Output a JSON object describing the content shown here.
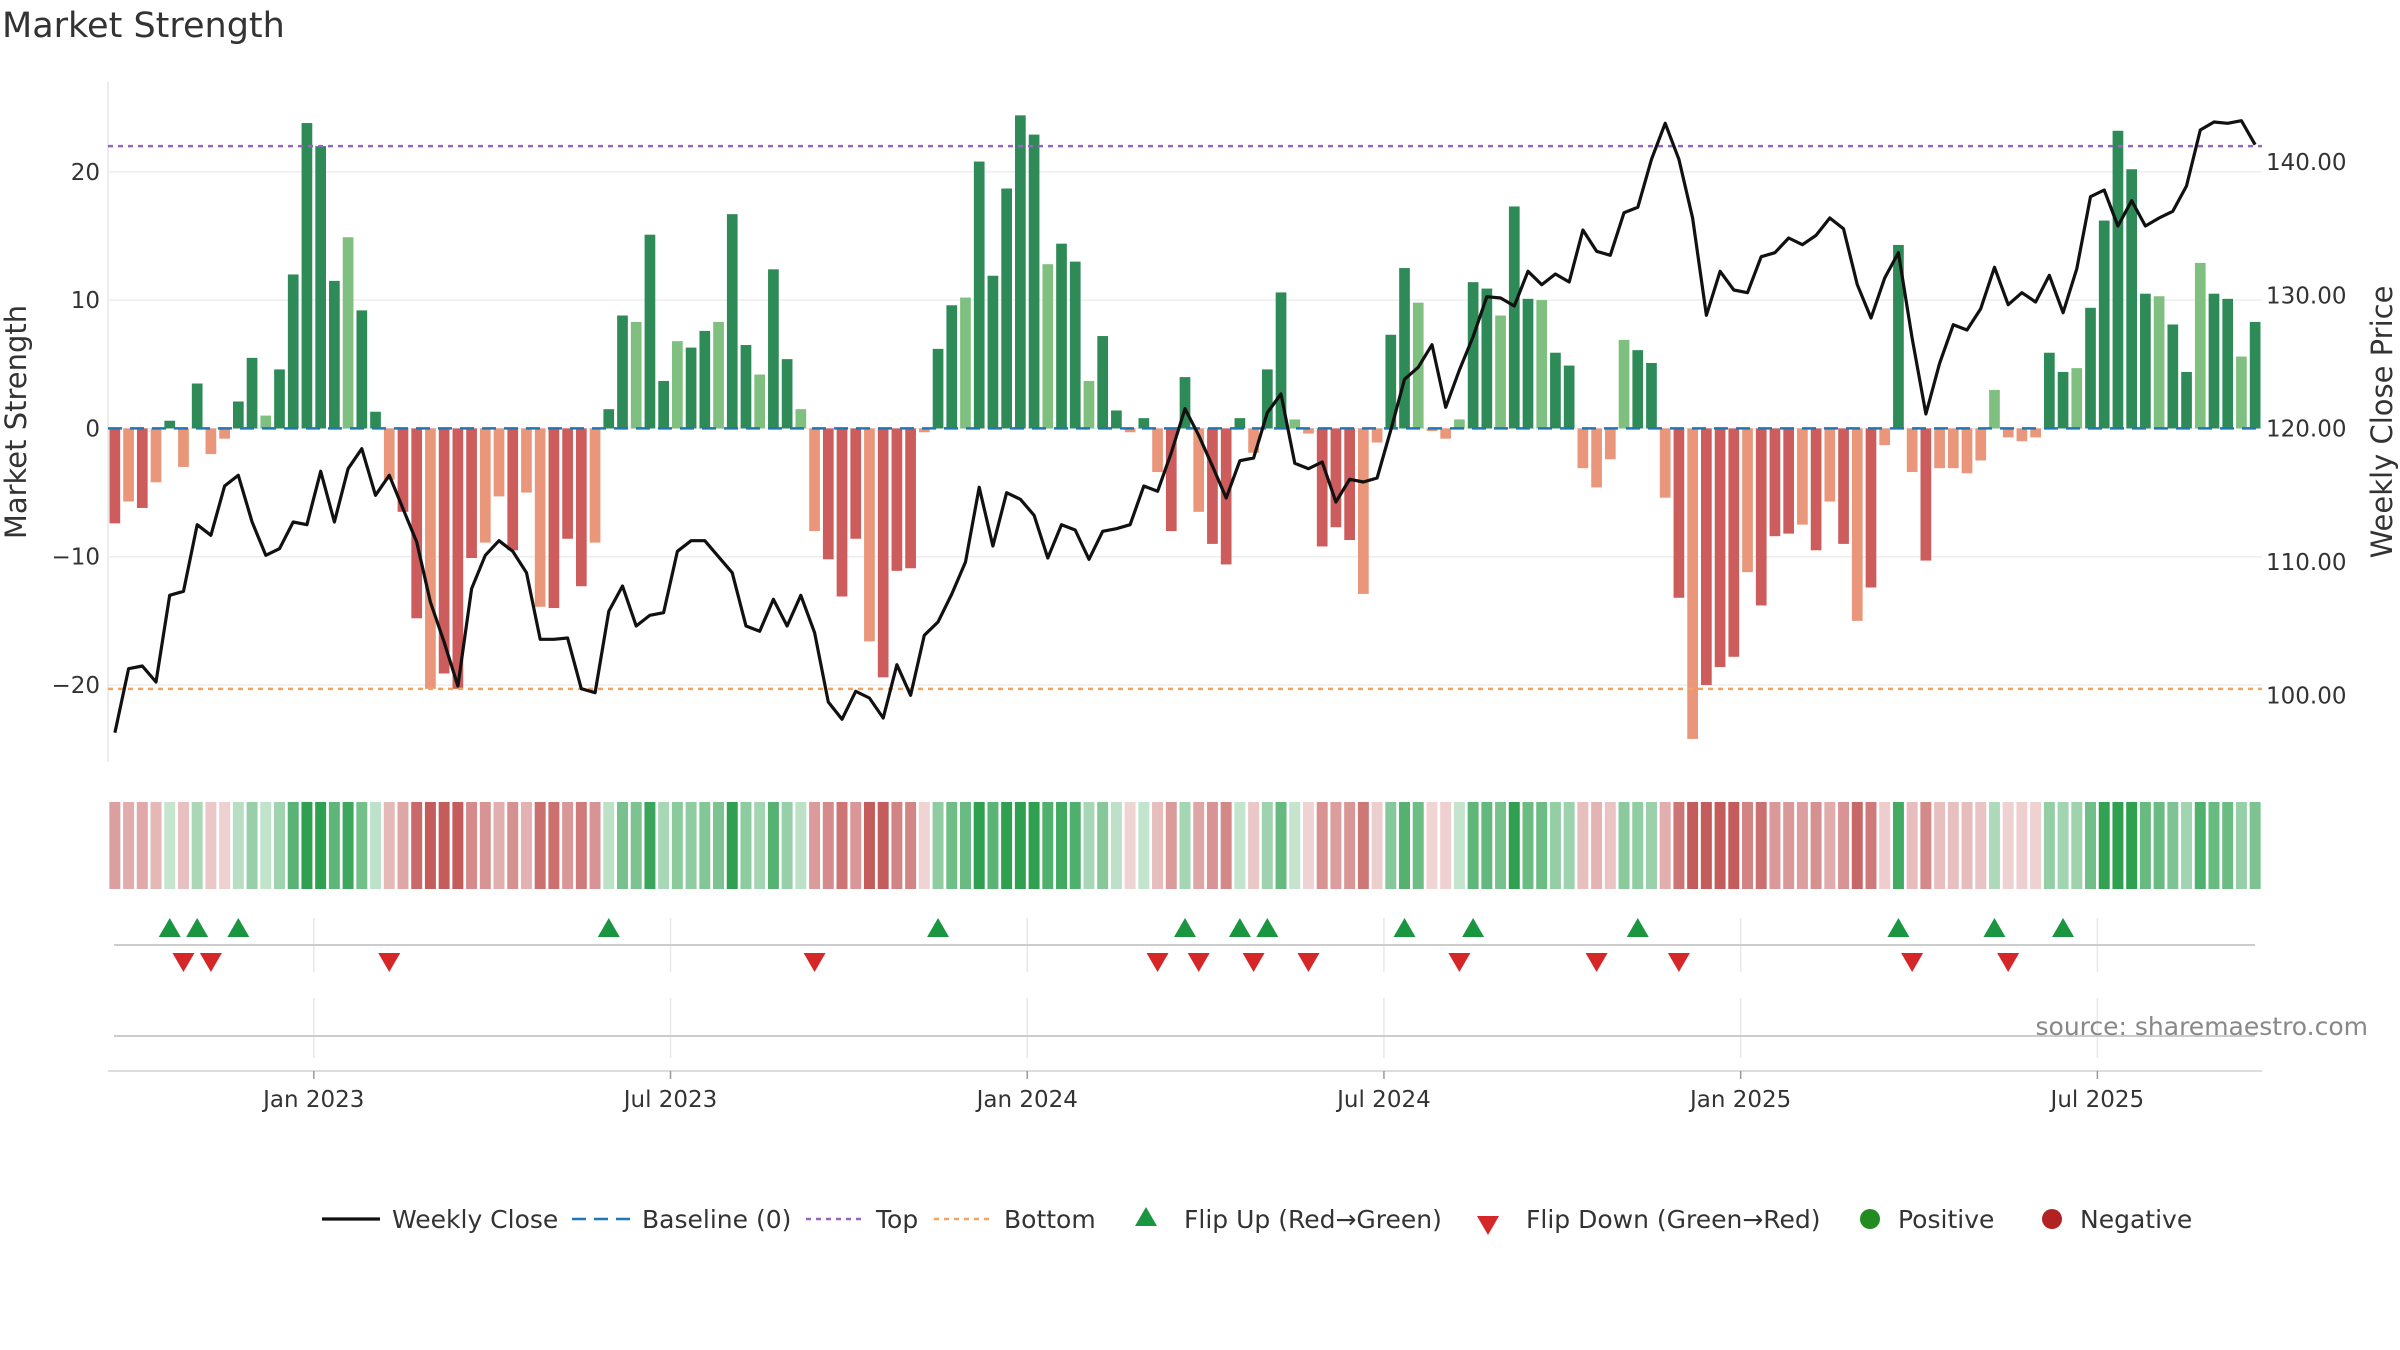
{
  "title": "Market Strength",
  "source": "source: sharemaestro.com",
  "colors": {
    "pos_strong": "#2e8b57",
    "pos_weak": "#7fbf7f",
    "neg_strong": "#cd5c5c",
    "neg_weak": "#e9967a",
    "price_line": "#111111",
    "baseline": "#1f77b4",
    "top_line": "#9467bd",
    "bottom_line": "#f4a460",
    "flip_up": "#1a9641",
    "flip_down": "#d62728",
    "positive": "#228b22",
    "negative": "#b22222"
  },
  "chart_data": {
    "type": "bar",
    "title": "Market Strength",
    "ylabel_left": "Market Strength",
    "ylabel_right": "Weekly Close Price",
    "ylim_left": [
      -26,
      27
    ],
    "ylim_right": [
      95,
      146
    ],
    "left_ticks": [
      {
        "v": 20,
        "label": "20"
      },
      {
        "v": 10,
        "label": "10"
      },
      {
        "v": 0,
        "label": "0"
      },
      {
        "v": -10,
        "label": "−10"
      },
      {
        "v": -20,
        "label": "−20"
      }
    ],
    "right_ticks": [
      {
        "v": 140,
        "label": "140.00"
      },
      {
        "v": 130,
        "label": "130.00"
      },
      {
        "v": 120,
        "label": "120.00"
      },
      {
        "v": 110,
        "label": "110.00"
      },
      {
        "v": 100,
        "label": "100.00"
      }
    ],
    "x_ticks": [
      {
        "index": 14.5,
        "label": "Jan 2023"
      },
      {
        "index": 40.5,
        "label": "Jul 2023"
      },
      {
        "index": 66.5,
        "label": "Jan 2024"
      },
      {
        "index": 92.5,
        "label": "Jul 2024"
      },
      {
        "index": 118.5,
        "label": "Jan 2025"
      },
      {
        "index": 144.5,
        "label": "Jul 2025"
      }
    ],
    "top_level": 22,
    "bottom_level": -20.3,
    "baseline": 0,
    "strength": [
      -7.4,
      -5.7,
      -6.2,
      -4.2,
      0.6,
      -3,
      3.5,
      -2,
      -0.8,
      2.1,
      5.5,
      1,
      4.6,
      12,
      23.8,
      22,
      11.5,
      14.9,
      9.2,
      1.3,
      -4,
      -6.5,
      -14.8,
      -20.3,
      -19.1,
      -20.3,
      -10.1,
      -8.9,
      -5.3,
      -9.5,
      -5,
      -13.9,
      -14,
      -8.6,
      -12.3,
      -8.9,
      1.5,
      8.8,
      8.3,
      15.1,
      3.7,
      6.8,
      6.3,
      7.6,
      8.3,
      16.7,
      6.5,
      4.2,
      12.4,
      5.4,
      1.5,
      -8,
      -10.2,
      -13.1,
      -8.6,
      -16.6,
      -19.4,
      -11.1,
      -10.9,
      -0.3,
      6.2,
      9.6,
      10.2,
      20.8,
      11.9,
      18.7,
      24.4,
      22.9,
      12.8,
      14.4,
      13,
      3.7,
      7.2,
      1.4,
      -0.3,
      0.8,
      -3.4,
      -8,
      4,
      -6.5,
      -9,
      -10.6,
      0.8,
      -1.9,
      4.6,
      10.6,
      0.7,
      -0.4,
      -9.2,
      -7.7,
      -8.7,
      -12.9,
      -1.1,
      7.3,
      12.5,
      9.8,
      -0.2,
      -0.8,
      0.7,
      11.4,
      10.9,
      8.8,
      17.3,
      10.1,
      10,
      5.9,
      4.9,
      -3.1,
      -4.6,
      -2.4,
      6.9,
      6.1,
      5.1,
      -5.4,
      -13.2,
      -24.2,
      -20,
      -18.6,
      -17.8,
      -11.2,
      -13.8,
      -8.4,
      -8.2,
      -7.5,
      -9.5,
      -5.7,
      -9,
      -15,
      -12.4,
      -1.3,
      14.3,
      -3.4,
      -10.3,
      -3.1,
      -3.1,
      -3.5,
      -2.5,
      3,
      -0.7,
      -1,
      -0.7,
      5.9,
      4.4,
      4.7,
      9.4,
      16.2,
      23.2,
      20.2,
      10.5,
      10.3,
      8.1,
      4.4,
      12.9,
      10.5,
      10.1,
      5.6,
      8.3
    ],
    "price": [
      97.2,
      102,
      102.2,
      101,
      107.5,
      107.8,
      112.8,
      112,
      115.7,
      116.5,
      113,
      110.5,
      111,
      113,
      112.8,
      116.8,
      113,
      117,
      118.5,
      115,
      116.5,
      114,
      111.5,
      107,
      104,
      100.7,
      108,
      110.5,
      111.6,
      110.8,
      109.2,
      104.2,
      104.2,
      104.3,
      100.5,
      100.2,
      106.3,
      108.2,
      105.2,
      106,
      106.2,
      110.8,
      111.6,
      111.6,
      110.4,
      109.2,
      105.2,
      104.8,
      107.2,
      105.2,
      107.5,
      104.7,
      99.5,
      98.2,
      100.3,
      99.8,
      98.3,
      102.3,
      100,
      104.5,
      105.5,
      107.6,
      110,
      115.6,
      111.2,
      115.2,
      114.7,
      113.5,
      110.3,
      112.8,
      112.4,
      110.2,
      112.3,
      112.5,
      112.8,
      115.7,
      115.3,
      118.2,
      121.5,
      119.5,
      117.2,
      114.8,
      117.6,
      117.8,
      121.2,
      122.6,
      117.4,
      117,
      117.5,
      114.5,
      116.2,
      116,
      116.3,
      119.9,
      123.7,
      124.6,
      126.3,
      121.6,
      124.4,
      126.9,
      129.9,
      129.8,
      129.2,
      131.8,
      130.8,
      131.6,
      131,
      134.9,
      133.3,
      133,
      136.2,
      136.6,
      140.2,
      142.9,
      140.2,
      135.8,
      128.5,
      131.8,
      130.4,
      130.2,
      132.9,
      133.2,
      134.3,
      133.8,
      134.5,
      135.8,
      135,
      130.8,
      128.3,
      131.3,
      133.2,
      126.8,
      121.1,
      124.9,
      127.8,
      127.4,
      129,
      132.1,
      129.3,
      130.2,
      129.5,
      131.5,
      128.7,
      132,
      137.4,
      137.9,
      135.2,
      137.1,
      135.2,
      135.8,
      136.3,
      138.2,
      142.4,
      143,
      142.9,
      143.1,
      141.3
    ],
    "flip_up_indices": [
      4,
      6,
      9,
      36,
      60,
      78,
      82,
      84,
      94,
      99,
      111,
      130,
      137,
      142
    ],
    "flip_down_indices": [
      5,
      7,
      20,
      51,
      76,
      79,
      83,
      87,
      98,
      108,
      114,
      131,
      138
    ]
  },
  "legend": [
    {
      "type": "line",
      "label": "Weekly Close"
    },
    {
      "type": "dashed",
      "label": "Baseline (0)"
    },
    {
      "type": "dotted-top",
      "label": "Top"
    },
    {
      "type": "dotted-bottom",
      "label": "Bottom"
    },
    {
      "type": "tri-up",
      "label": "Flip Up (Red→Green)"
    },
    {
      "type": "tri-down",
      "label": "Flip Down (Green→Red)"
    },
    {
      "type": "dot-pos",
      "label": "Positive"
    },
    {
      "type": "dot-neg",
      "label": "Negative"
    }
  ]
}
